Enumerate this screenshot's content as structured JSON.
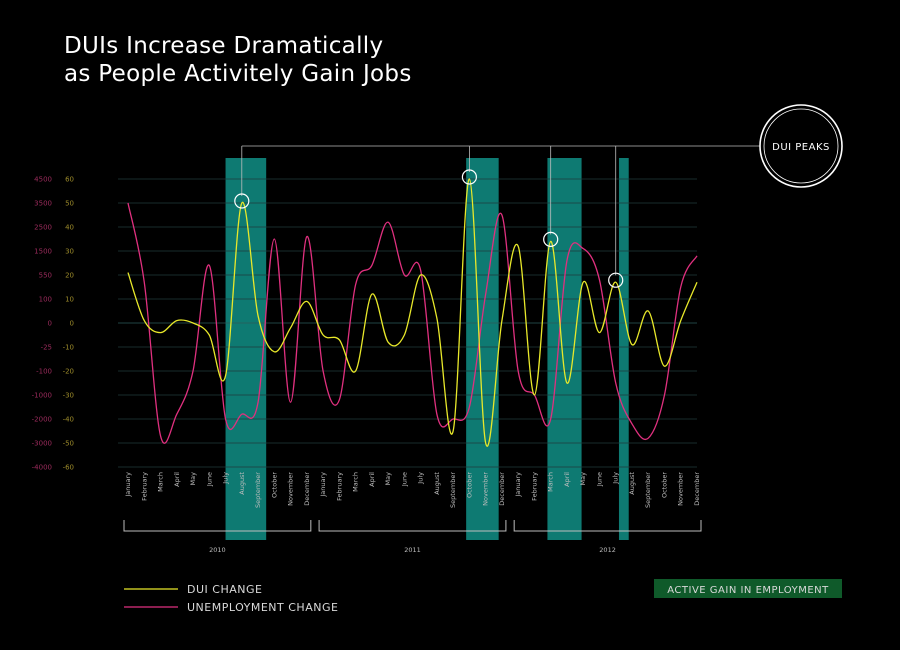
{
  "title_line1": "DUIs Increase Dramatically",
  "title_line2": "as People Activitely Gain Jobs",
  "colors": {
    "background": "#000000",
    "dui": "#e8e82a",
    "unemployment": "#e0307f",
    "employment_band": "#0e7a72",
    "employment_band_dark": "#1a4d1a",
    "grid": "#1f3d3d",
    "dui_axis": "#9b8a2a",
    "unemployment_axis": "#9b2b5c",
    "badge_fill": "#0f5a2a"
  },
  "peak_label": "DUI PEAKS",
  "legend": {
    "dui_label": "DUI CHANGE",
    "unemployment_label": "UNEMPLOYMENT CHANGE"
  },
  "badge": "ACTIVE GAIN IN EMPLOYMENT",
  "chart_data": {
    "type": "line",
    "x": [
      "January",
      "February",
      "March",
      "April",
      "May",
      "June",
      "July",
      "August",
      "September",
      "October",
      "November",
      "December",
      "January",
      "February",
      "March",
      "April",
      "May",
      "June",
      "July",
      "August",
      "September",
      "October",
      "November",
      "December",
      "January",
      "February",
      "March",
      "April",
      "May",
      "June",
      "July",
      "August",
      "September",
      "October",
      "November",
      "December"
    ],
    "years": [
      {
        "label": "2010",
        "from": 0,
        "to": 11
      },
      {
        "label": "2011",
        "from": 12,
        "to": 23
      },
      {
        "label": "2012",
        "from": 24,
        "to": 35
      }
    ],
    "y_left_dui_ticks": [
      60,
      50,
      40,
      30,
      20,
      10,
      0,
      -10,
      -20,
      -30,
      -40,
      -50,
      -60
    ],
    "y_right_unemployment_ticks": [
      "4500",
      "3500",
      "2500",
      "1500",
      "550",
      "100",
      "0",
      "-25",
      "-100",
      "-1000",
      "-2000",
      "-3000",
      "-4000"
    ],
    "series": [
      {
        "name": "DUI CHANGE",
        "values": [
          21,
          1,
          -4,
          1,
          0,
          -5,
          -22,
          50,
          3,
          -12,
          -2,
          9,
          -5,
          -7,
          -20,
          12,
          -8,
          -5,
          20,
          2,
          -45,
          60,
          -50,
          1,
          32,
          -30,
          34,
          -25,
          17,
          -4,
          17,
          -9,
          5,
          -18,
          1,
          17
        ]
      },
      {
        "name": "UNEMPLOYMENT CHANGE",
        "values": [
          50,
          17,
          -47,
          -38,
          -20,
          24,
          -40,
          -38,
          -33,
          35,
          -33,
          36,
          -20,
          -32,
          16,
          24,
          42,
          20,
          22,
          -38,
          -40,
          -35,
          12,
          45,
          -20,
          -30,
          -40,
          26,
          31,
          18,
          -25,
          -42,
          -48,
          -30,
          15,
          28
        ]
      }
    ],
    "dui_peaks_index": [
      7,
      21,
      26,
      30
    ],
    "employment_bands": [
      {
        "from": 6.0,
        "to": 8.5
      },
      {
        "from": 20.8,
        "to": 22.8
      },
      {
        "from": 25.8,
        "to": 27.9
      },
      {
        "from": 30.2,
        "to": 30.8
      }
    ],
    "ylim": [
      -60,
      60
    ]
  }
}
